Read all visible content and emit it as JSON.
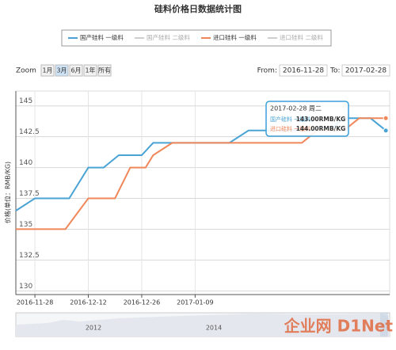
{
  "chart_data": {
    "type": "line",
    "title": "硅料价格日数据统计图",
    "y_label": "价格(单位：RMB/KG)",
    "xlim": [
      "2016-11-23",
      "2017-03-01"
    ],
    "xticks": [
      "2016-11-28",
      "2016-12-12",
      "2016-12-26",
      "2017-01-09"
    ],
    "ylim": [
      129.7,
      146.2
    ],
    "yticks": [
      130,
      132.5,
      135,
      137.5,
      140,
      142.5,
      145
    ],
    "grid": true,
    "legend": "top",
    "series": [
      {
        "name": "国产硅料 一级料",
        "color": "#4aa3d5",
        "x": [
          "2016-11-23",
          "2016-11-28",
          "2016-12-07",
          "2016-12-12",
          "2016-12-16",
          "2016-12-20",
          "2016-12-26",
          "2016-12-29",
          "2017-01-18",
          "2017-01-23",
          "2017-02-13",
          "2017-02-17",
          "2017-02-24",
          "2017-02-28"
        ],
        "values": [
          136.5,
          137.5,
          137.5,
          140,
          140,
          141,
          141,
          142,
          142,
          143,
          143,
          144,
          144,
          143
        ]
      },
      {
        "name": "国产硅料 二级料",
        "color": "#cccccc",
        "x": [],
        "values": []
      },
      {
        "name": "进口硅料 一级料",
        "color": "#f0875a",
        "x": [
          "2016-11-23",
          "2016-12-06",
          "2016-12-12",
          "2016-12-19",
          "2016-12-23",
          "2016-12-27",
          "2016-12-29",
          "2017-01-03",
          "2017-02-06",
          "2017-02-10",
          "2017-02-17",
          "2017-02-21",
          "2017-02-28"
        ],
        "values": [
          135,
          135,
          137.5,
          137.5,
          140,
          140,
          141,
          142,
          142,
          143,
          143,
          144,
          144
        ]
      },
      {
        "name": "进口硅料 二级料",
        "color": "#cccccc",
        "x": [],
        "values": []
      }
    ],
    "range_selector": {
      "label": "Zoom",
      "buttons": [
        "1月",
        "3月",
        "6月",
        "1年",
        "所有"
      ],
      "selected": 1,
      "from_label": "From:",
      "from": "2016-11-28",
      "to_label": "To:",
      "to": "2017-02-28"
    },
    "tooltip": {
      "date": "2017-02-28 周二",
      "rows": [
        {
          "name": "国产硅料 一级料：",
          "value": "143.00RMB/KG"
        },
        {
          "name": "进口硅料 一级料：",
          "value": "144.00RMB/KG"
        }
      ]
    },
    "navigator_labels": [
      "2012",
      "2014"
    ],
    "watermark": "企业网 D1Net"
  }
}
